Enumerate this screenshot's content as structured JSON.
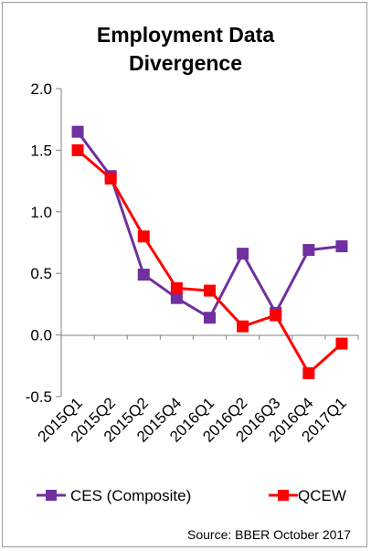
{
  "chart_data": {
    "type": "line",
    "title": [
      "Employment Data",
      "Divergence"
    ],
    "categories": [
      "2015Q1",
      "2015Q2",
      "2015Q2",
      "2015Q4",
      "2016Q1",
      "2016Q2",
      "2016Q3",
      "2016Q4",
      "2017Q1"
    ],
    "series": [
      {
        "name": "CES (Composite)",
        "color": "#7030A0",
        "values": [
          1.65,
          1.29,
          0.49,
          0.3,
          0.14,
          0.66,
          0.18,
          0.69,
          0.72
        ]
      },
      {
        "name": "QCEW",
        "color": "#FF0000",
        "values": [
          1.5,
          1.27,
          0.8,
          0.38,
          0.36,
          0.07,
          0.16,
          -0.31,
          -0.07
        ]
      }
    ],
    "ylim": [
      -0.5,
      2.0
    ],
    "yticks": [
      "2.0",
      "1.5",
      "1.0",
      "0.5",
      "0.0",
      "-0.5"
    ],
    "ytick_values": [
      2.0,
      1.5,
      1.0,
      0.5,
      0.0,
      -0.5
    ],
    "grid": false,
    "legend_position": "bottom",
    "source": "Source: BBER October 2017"
  }
}
